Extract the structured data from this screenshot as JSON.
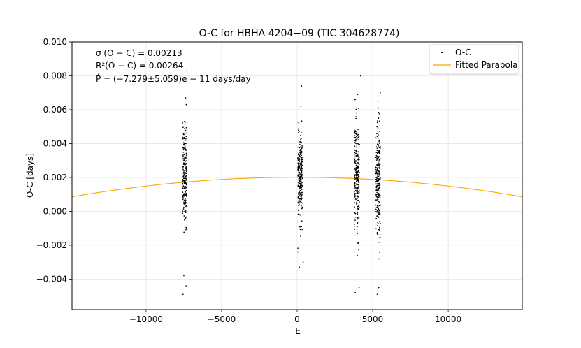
{
  "chart_data": {
    "type": "scatter",
    "title": "O-C for HBHA 4204−09 (TIC 304628774)",
    "xlabel": "E",
    "ylabel": "O-C [days]",
    "xlim": [
      -14900,
      14900
    ],
    "ylim": [
      -0.0058,
      0.01
    ],
    "xticks": [
      -10000,
      -5000,
      0,
      5000,
      10000
    ],
    "xtick_labels": [
      "−10000",
      "−5000",
      "0",
      "5000",
      "10000"
    ],
    "yticks": [
      -0.004,
      -0.002,
      0.0,
      0.002,
      0.004,
      0.006,
      0.008,
      0.01
    ],
    "ytick_labels": [
      "−0.004",
      "−0.002",
      "0.000",
      "0.002",
      "0.004",
      "0.006",
      "0.008",
      "0.010"
    ],
    "grid": true,
    "legend_position": "top-right",
    "annotations": [
      "σ (O − C) = 0.00213",
      "R²(O − C) = 0.00264",
      "Ṗ = (−7.279±5.059)e − 11 days/day"
    ],
    "series": [
      {
        "name": "O-C",
        "kind": "scatter",
        "color": "#000000",
        "clusters": [
          {
            "x_center": -7450,
            "x_spread": 260,
            "y_mean": 0.0022,
            "y_sd": 0.0019,
            "count": 220,
            "extremes": [
              [
                -7550,
                -0.0049
              ],
              [
                -7300,
                0.0083
              ],
              [
                -7380,
                0.0067
              ],
              [
                -7500,
                -0.0038
              ],
              [
                -7350,
                -0.0044
              ]
            ]
          },
          {
            "x_center": 200,
            "x_spread": 300,
            "y_mean": 0.002,
            "y_sd": 0.0016,
            "count": 260,
            "extremes": [
              [
                300,
                0.0074
              ],
              [
                50,
                -0.0024
              ],
              [
                150,
                -0.0033
              ],
              [
                250,
                0.0062
              ],
              [
                400,
                -0.003
              ]
            ]
          },
          {
            "x_center": 3950,
            "x_spread": 340,
            "y_mean": 0.0021,
            "y_sd": 0.0022,
            "count": 260,
            "extremes": [
              [
                4200,
                0.008
              ],
              [
                3850,
                -0.0048
              ],
              [
                4100,
                -0.0045
              ],
              [
                4000,
                0.0069
              ]
            ]
          },
          {
            "x_center": 5350,
            "x_spread": 300,
            "y_mean": 0.0019,
            "y_sd": 0.0022,
            "count": 260,
            "extremes": [
              [
                5500,
                0.007
              ],
              [
                5300,
                -0.0049
              ],
              [
                5400,
                -0.0045
              ],
              [
                5350,
                0.0065
              ]
            ]
          }
        ]
      },
      {
        "name": "Fitted Parabola",
        "kind": "line",
        "color": "#ffa500",
        "model": {
          "a": -5.2e-12,
          "b": 0.0,
          "c": 0.00201
        }
      }
    ]
  }
}
